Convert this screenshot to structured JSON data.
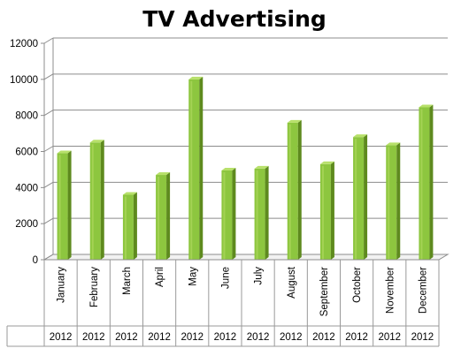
{
  "chart_data": {
    "type": "bar",
    "title": "TV Advertising",
    "categories": [
      "January",
      "February",
      "March",
      "April",
      "May",
      "June",
      "July",
      "August",
      "September",
      "October",
      "November",
      "December"
    ],
    "group_label": "2012",
    "values": [
      5900,
      6500,
      3600,
      4700,
      10000,
      4950,
      5050,
      7600,
      5300,
      6800,
      6350,
      8450
    ],
    "ylim": [
      0,
      12000
    ],
    "yticks": [
      "0",
      "2000",
      "4000",
      "6000",
      "8000",
      "10000",
      "12000"
    ],
    "grid": true,
    "legend": "none",
    "colors": {
      "bar_front": "#8DC63F",
      "bar_side": "#5E8A1E",
      "bar_top": "#B7E06A",
      "grid": "#8c8c8c",
      "wall": "#ffffff"
    }
  }
}
